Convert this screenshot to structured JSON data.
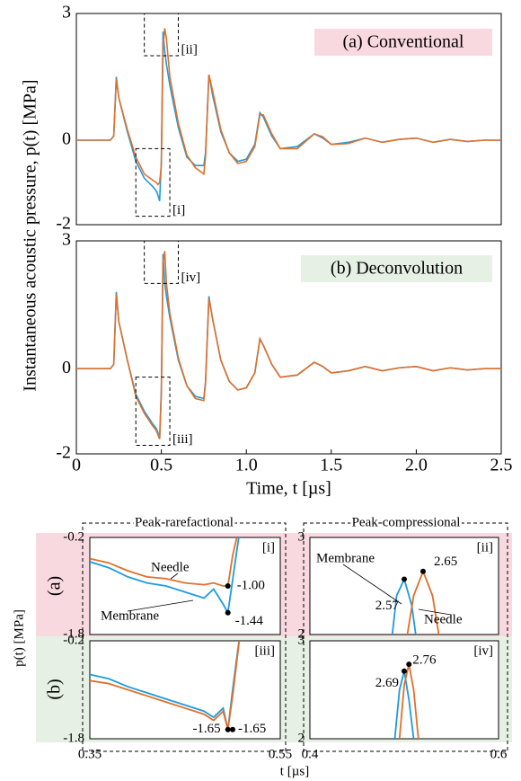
{
  "ylabel": "Instantaneous acoustic pressure, p(t) [MPa]",
  "chart_data": [
    {
      "type": "line",
      "title": "(a) Conventional",
      "x": [
        0,
        0.1,
        0.2,
        0.22,
        0.235,
        0.25,
        0.3,
        0.35,
        0.4,
        0.45,
        0.47,
        0.48,
        0.49,
        0.5,
        0.51,
        0.52,
        0.53,
        0.55,
        0.6,
        0.65,
        0.7,
        0.75,
        0.76,
        0.78,
        0.8,
        0.85,
        0.9,
        0.95,
        1.0,
        1.05,
        1.08,
        1.1,
        1.15,
        1.2,
        1.3,
        1.4,
        1.45,
        1.5,
        1.6,
        1.7,
        1.8,
        1.9,
        2.0,
        2.1,
        2.2,
        2.3,
        2.4,
        2.5
      ],
      "xlim": [
        0,
        2.5
      ],
      "ylim": [
        -2,
        3
      ],
      "yticks": [
        -2,
        0,
        3
      ],
      "series": [
        {
          "color": "#1e9bdc",
          "values": [
            0,
            0,
            0,
            0.1,
            1.5,
            1.0,
            0.2,
            -0.5,
            -0.9,
            -1.1,
            -1.2,
            -1.3,
            -1.44,
            -0.5,
            2.57,
            2.1,
            1.8,
            1.3,
            0.3,
            -0.4,
            -0.6,
            -0.6,
            -0.3,
            1.55,
            1.1,
            0.2,
            -0.3,
            -0.5,
            -0.45,
            -0.1,
            0.65,
            0.55,
            0.1,
            -0.2,
            -0.15,
            0.15,
            0.05,
            -0.1,
            -0.05,
            0.05,
            -0.05,
            0.02,
            0.05,
            -0.05,
            0.02,
            -0.03,
            0,
            0
          ]
        },
        {
          "color": "#e0702a",
          "values": [
            0,
            0,
            0,
            0.1,
            1.45,
            1.0,
            0.25,
            -0.4,
            -0.8,
            -0.95,
            -1.0,
            -1.05,
            -1.0,
            -0.6,
            2.2,
            2.65,
            2.4,
            1.5,
            0.4,
            -0.35,
            -0.65,
            -0.8,
            -0.4,
            1.55,
            1.2,
            0.25,
            -0.3,
            -0.55,
            -0.5,
            -0.15,
            0.6,
            0.6,
            0.15,
            -0.2,
            -0.2,
            0.15,
            0.08,
            -0.1,
            -0.08,
            0.05,
            -0.05,
            0.02,
            0.05,
            -0.05,
            0.02,
            -0.03,
            0,
            0
          ]
        }
      ]
    },
    {
      "type": "line",
      "title": "(b) Deconvolution",
      "xlabel": "Time, t [µs]",
      "x": [
        0,
        0.1,
        0.2,
        0.22,
        0.235,
        0.25,
        0.3,
        0.35,
        0.4,
        0.45,
        0.47,
        0.48,
        0.49,
        0.5,
        0.51,
        0.52,
        0.53,
        0.55,
        0.6,
        0.65,
        0.7,
        0.75,
        0.76,
        0.78,
        0.8,
        0.85,
        0.9,
        0.95,
        1.0,
        1.05,
        1.08,
        1.1,
        1.15,
        1.2,
        1.3,
        1.4,
        1.45,
        1.5,
        1.6,
        1.7,
        1.8,
        1.9,
        2.0,
        2.1,
        2.2,
        2.3,
        2.4,
        2.5
      ],
      "xlim": [
        0,
        2.5
      ],
      "xticks": [
        0,
        0.5,
        {
          "value": 1,
          "label": "1.0"
        },
        1.5,
        {
          "value": 2,
          "label": "2.0"
        },
        2.5
      ],
      "ylim": [
        -2,
        3
      ],
      "yticks": [
        -2,
        0,
        3
      ],
      "series": [
        {
          "color": "#1e9bdc",
          "values": [
            0,
            0,
            0,
            0.1,
            1.8,
            1.1,
            0.2,
            -0.6,
            -1.0,
            -1.3,
            -1.4,
            -1.5,
            -1.65,
            -0.5,
            2.69,
            2.0,
            1.7,
            1.2,
            0.2,
            -0.4,
            -0.65,
            -0.7,
            -0.3,
            1.7,
            1.2,
            0.2,
            -0.3,
            -0.5,
            -0.45,
            -0.1,
            0.7,
            0.55,
            0.1,
            -0.2,
            -0.15,
            0.15,
            0.05,
            -0.1,
            -0.05,
            0.05,
            -0.05,
            0.02,
            0.05,
            -0.05,
            0.02,
            -0.03,
            0,
            0
          ]
        },
        {
          "color": "#e0702a",
          "values": [
            0,
            0,
            0,
            0.1,
            1.75,
            1.1,
            0.2,
            -0.65,
            -1.05,
            -1.35,
            -1.45,
            -1.55,
            -1.65,
            -0.6,
            2.5,
            2.76,
            2.0,
            1.3,
            0.25,
            -0.4,
            -0.7,
            -0.75,
            -0.35,
            1.65,
            1.2,
            0.2,
            -0.3,
            -0.5,
            -0.45,
            -0.1,
            0.7,
            0.55,
            0.1,
            -0.2,
            -0.15,
            0.15,
            0.05,
            -0.1,
            -0.05,
            0.05,
            -0.05,
            0.02,
            0.05,
            -0.05,
            0.02,
            -0.03,
            0,
            0
          ]
        }
      ]
    },
    {
      "type": "line",
      "tag": "[i]",
      "xlim": [
        0.35,
        0.55
      ],
      "ylim": [
        -1.8,
        -0.2
      ],
      "yticks": [
        -1.8,
        -0.2
      ],
      "series": [
        {
          "name": "Membrane",
          "color": "#1e9bdc",
          "x": [
            0.35,
            0.37,
            0.39,
            0.41,
            0.43,
            0.45,
            0.47,
            0.48,
            0.49,
            0.495,
            0.5,
            0.51
          ],
          "values": [
            -0.6,
            -0.7,
            -0.85,
            -0.95,
            -1.0,
            -1.1,
            -1.2,
            -1.05,
            -1.3,
            -1.44,
            -0.9,
            0.2
          ]
        },
        {
          "name": "Needle",
          "color": "#e0702a",
          "x": [
            0.35,
            0.37,
            0.39,
            0.41,
            0.43,
            0.45,
            0.47,
            0.48,
            0.49,
            0.495,
            0.5,
            0.51
          ],
          "values": [
            -0.55,
            -0.62,
            -0.75,
            -0.85,
            -0.88,
            -0.95,
            -0.98,
            -0.95,
            -1.0,
            -1.0,
            -0.5,
            0.2
          ]
        }
      ],
      "markers": {
        "x": [
          0.495,
          0.495
        ],
        "values": [
          -1.0,
          -1.44
        ],
        "value_labels": [
          "-1.00",
          "-1.44"
        ]
      }
    },
    {
      "type": "line",
      "tag": "[ii]",
      "xlim": [
        0.4,
        0.6
      ],
      "ylim": [
        2,
        3
      ],
      "yticks": [
        2,
        3
      ],
      "series": [
        {
          "name": "Membrane",
          "color": "#1e9bdc",
          "x": [
            0.485,
            0.492,
            0.5,
            0.508,
            0.515
          ],
          "values": [
            1.8,
            2.4,
            2.57,
            2.3,
            1.8
          ]
        },
        {
          "name": "Needle",
          "color": "#e0702a",
          "x": [
            0.5,
            0.51,
            0.52,
            0.53,
            0.54
          ],
          "values": [
            1.8,
            2.4,
            2.65,
            2.4,
            1.8
          ]
        }
      ],
      "markers": {
        "x": [
          0.5,
          0.52
        ],
        "values": [
          2.57,
          2.65
        ],
        "value_labels": [
          "2.57",
          "2.65"
        ]
      }
    },
    {
      "type": "line",
      "tag": "[iii]",
      "xlim": [
        0.35,
        0.55
      ],
      "xticks": [
        0.35,
        0.55
      ],
      "ylim": [
        -1.8,
        -0.2
      ],
      "yticks": [
        -1.8,
        -0.2
      ],
      "series": [
        {
          "color": "#1e9bdc",
          "x": [
            0.35,
            0.37,
            0.39,
            0.41,
            0.43,
            0.45,
            0.47,
            0.48,
            0.49,
            0.495,
            0.5,
            0.51
          ],
          "values": [
            -0.75,
            -0.82,
            -0.95,
            -1.05,
            -1.15,
            -1.25,
            -1.35,
            -1.45,
            -1.3,
            -1.65,
            -1.0,
            0.2
          ]
        },
        {
          "color": "#e0702a",
          "x": [
            0.35,
            0.37,
            0.39,
            0.41,
            0.43,
            0.45,
            0.47,
            0.48,
            0.49,
            0.495,
            0.5,
            0.51
          ],
          "values": [
            -0.85,
            -0.9,
            -1.0,
            -1.1,
            -1.2,
            -1.3,
            -1.4,
            -1.5,
            -1.35,
            -1.65,
            -1.1,
            0.2
          ]
        }
      ],
      "markers": {
        "x": [
          0.495,
          0.5
        ],
        "values": [
          -1.65,
          -1.65
        ]
      }
    },
    {
      "type": "line",
      "tag": "[iv]",
      "xlim": [
        0.4,
        0.6
      ],
      "xticks": [
        0.4,
        0.6
      ],
      "ylim": [
        2,
        3
      ],
      "yticks": [
        2,
        3
      ],
      "series": [
        {
          "color": "#1e9bdc",
          "x": [
            0.49,
            0.495,
            0.5,
            0.505,
            0.51
          ],
          "values": [
            2,
            2.5,
            2.69,
            2.4,
            2
          ]
        },
        {
          "color": "#e0702a",
          "x": [
            0.495,
            0.5,
            0.505,
            0.51,
            0.515
          ],
          "values": [
            2,
            2.55,
            2.76,
            2.5,
            2
          ]
        }
      ],
      "markers": {
        "x": [
          0.5,
          0.505
        ],
        "values": [
          2.69,
          2.76
        ]
      }
    }
  ],
  "inset_panel": {
    "columns": [
      "Peak-rarefactional",
      "Peak-compressional"
    ],
    "rows": [
      "(a)",
      "(b)"
    ],
    "ylabel": "p(t) [MPa]",
    "xlabel": "t [µs]"
  }
}
